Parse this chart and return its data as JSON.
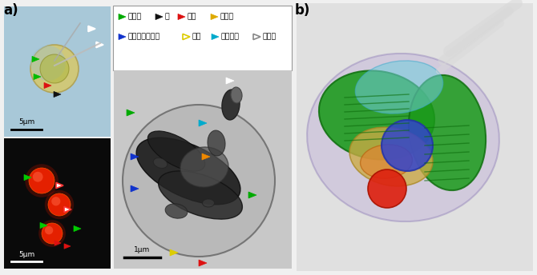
{
  "title_a": "a)",
  "title_b": "b)",
  "legend_line1": [
    {
      "color": "#00aa00",
      "label": "葉緑体"
    },
    {
      "color": "#111111",
      "label": "核"
    },
    {
      "color": "#dd1111",
      "label": "脂質"
    },
    {
      "color": "#ddaa00",
      "label": "小胞体"
    }
  ],
  "legend_line2": [
    {
      "color": "#1133cc",
      "label": "ミトコンドリア"
    },
    {
      "color": "#ddcc00",
      "label": "液胞"
    },
    {
      "color": "#00aacc",
      "label": "ゴルジ体"
    },
    {
      "color": "#888888",
      "label": "べん毛"
    }
  ],
  "scale_bar_1": "5µm",
  "scale_bar_2": "5µm",
  "scale_bar_3": "1µm",
  "panel_tl_bg": "#a8c8d8",
  "panel_bl_bg": "#0a0a0a",
  "panel_tem_bg": "#c8c8c8",
  "panel_b_bg": "#e0e0e0"
}
